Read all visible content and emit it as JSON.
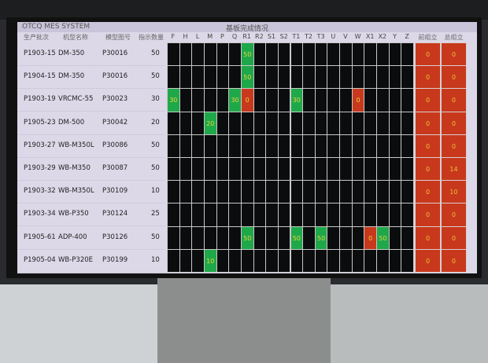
{
  "header": {
    "app_title": "OTCQ MES SYSTEM",
    "grid_title": "基板完成情况"
  },
  "columns": {
    "batch": "生产批次",
    "model": "机型名称",
    "drawing": "模型图号",
    "qty": "指示数量",
    "boards": [
      "F",
      "H",
      "L",
      "M",
      "P",
      "Q",
      "R1",
      "R2",
      "S1",
      "S2",
      "T1",
      "T2",
      "T3",
      "U",
      "V",
      "W",
      "X1",
      "X2",
      "Y",
      "Z"
    ],
    "front_assembly": "前组立",
    "final_assembly": "总组立"
  },
  "colors": {
    "done": "#1fa84a",
    "pending": "#c8381c",
    "empty": "#0b0c0d"
  },
  "rows": [
    {
      "batch": "P1903-15",
      "model": "DM-350",
      "drawing": "P30016",
      "qty": "50",
      "cells": {
        "R1": {
          "v": "50",
          "s": "green"
        }
      },
      "front": {
        "v": "0",
        "s": "red"
      },
      "final": {
        "v": "0",
        "s": "red"
      }
    },
    {
      "batch": "P1904-15",
      "model": "DM-350",
      "drawing": "P30016",
      "qty": "50",
      "cells": {
        "R1": {
          "v": "50",
          "s": "green"
        }
      },
      "front": {
        "v": "0",
        "s": "red"
      },
      "final": {
        "v": "0",
        "s": "red"
      }
    },
    {
      "batch": "P1903-19",
      "model": "VRCMC-55",
      "drawing": "P30023",
      "qty": "30",
      "cells": {
        "F": {
          "v": "30",
          "s": "green"
        },
        "Q": {
          "v": "30",
          "s": "green"
        },
        "R1": {
          "v": "0",
          "s": "red"
        },
        "T1": {
          "v": "30",
          "s": "green"
        },
        "W": {
          "v": "0",
          "s": "red"
        }
      },
      "front": {
        "v": "0",
        "s": "red"
      },
      "final": {
        "v": "0",
        "s": "red"
      }
    },
    {
      "batch": "P1905-23",
      "model": "DM-500",
      "drawing": "P30042",
      "qty": "20",
      "cells": {
        "M": {
          "v": "20",
          "s": "green"
        }
      },
      "front": {
        "v": "0",
        "s": "red"
      },
      "final": {
        "v": "0",
        "s": "red"
      }
    },
    {
      "batch": "P1903-27",
      "model": "WB-M350L",
      "drawing": "P30086",
      "qty": "50",
      "cells": {},
      "front": {
        "v": "0",
        "s": "red"
      },
      "final": {
        "v": "0",
        "s": "red"
      }
    },
    {
      "batch": "P1903-29",
      "model": "WB-M350",
      "drawing": "P30087",
      "qty": "50",
      "cells": {},
      "front": {
        "v": "0",
        "s": "red"
      },
      "final": {
        "v": "14",
        "s": "red"
      }
    },
    {
      "batch": "P1903-32",
      "model": "WB-M350L",
      "drawing": "P30109",
      "qty": "10",
      "cells": {},
      "front": {
        "v": "0",
        "s": "red"
      },
      "final": {
        "v": "10",
        "s": "green"
      }
    },
    {
      "batch": "P1903-34",
      "model": "WB-P350",
      "drawing": "P30124",
      "qty": "25",
      "cells": {},
      "front": {
        "v": "0",
        "s": "red"
      },
      "final": {
        "v": "0",
        "s": "red"
      }
    },
    {
      "batch": "P1905-61",
      "model": "ADP-400",
      "drawing": "P30126",
      "qty": "50",
      "cells": {
        "R1": {
          "v": "50",
          "s": "green"
        },
        "T1": {
          "v": "50",
          "s": "green"
        },
        "T3": {
          "v": "50",
          "s": "green"
        },
        "X1": {
          "v": "0",
          "s": "red"
        },
        "X2": {
          "v": "50",
          "s": "green"
        }
      },
      "front": {
        "v": "0",
        "s": "red"
      },
      "final": {
        "v": "0",
        "s": "red"
      }
    },
    {
      "batch": "P1905-04",
      "model": "WB-P320E",
      "drawing": "P30199",
      "qty": "10",
      "cells": {
        "M": {
          "v": "10",
          "s": "green"
        }
      },
      "front": {
        "v": "0",
        "s": "red"
      },
      "final": {
        "v": "0",
        "s": "red"
      }
    }
  ]
}
